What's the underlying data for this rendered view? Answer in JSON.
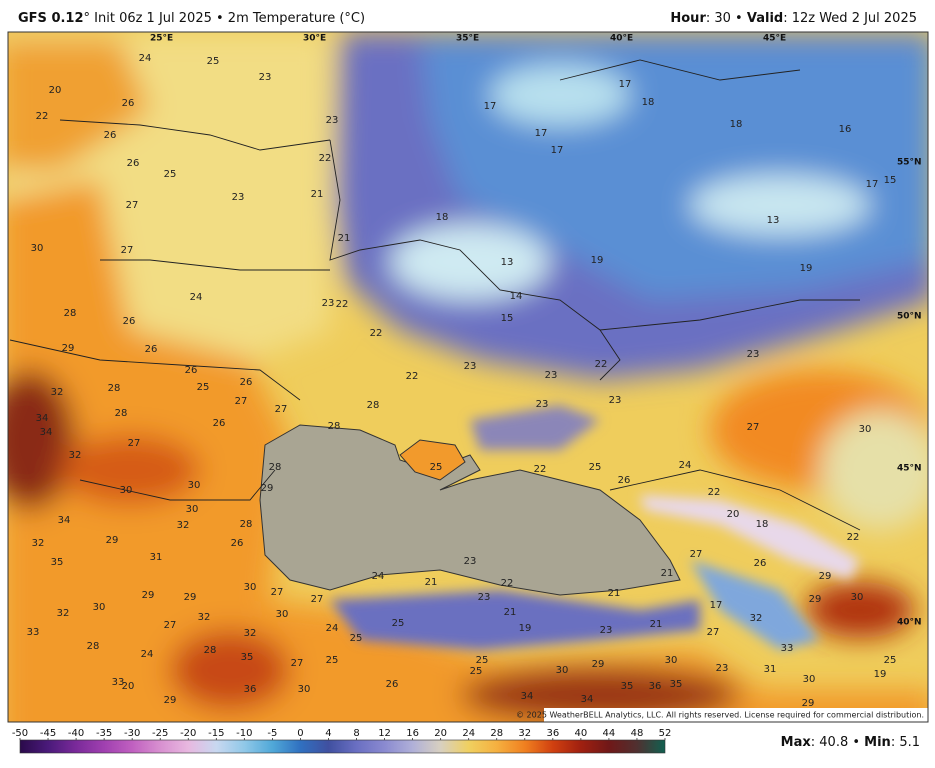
{
  "header": {
    "model": "GFS 0.12",
    "title": "° Init 06z 1 Jul 2025 • 2m Temperature (°C)",
    "hour_label": "Hour",
    "hour_rest": ": 30 • ",
    "valid_label": "Valid",
    "valid_rest": ": 12z Wed 2 Jul 2025"
  },
  "grid_labels": [
    "25°E",
    "30°E",
    "35°E",
    "40°E",
    "45°E",
    "55°N",
    "50°N",
    "45°N",
    "40°N"
  ],
  "labels": [
    "24",
    "25",
    "23",
    "20",
    "26",
    "22",
    "26",
    "23",
    "17",
    "18",
    "17",
    "17",
    "17",
    "18",
    "16",
    "26",
    "25",
    "22",
    "21",
    "23",
    "27",
    "17",
    "15",
    "18",
    "13",
    "21",
    "30",
    "27",
    "13",
    "19",
    "19",
    "24",
    "23",
    "22",
    "14",
    "28",
    "26",
    "15",
    "22",
    "29",
    "26",
    "23",
    "22",
    "23",
    "22",
    "23",
    "26",
    "25",
    "26",
    "28",
    "27",
    "28",
    "32",
    "23",
    "23",
    "28",
    "27",
    "34",
    "34",
    "26",
    "28",
    "27",
    "27",
    "30",
    "32",
    "25",
    "22",
    "25",
    "24",
    "28",
    "26",
    "30",
    "30",
    "29",
    "22",
    "30",
    "34",
    "32",
    "28",
    "20",
    "18",
    "29",
    "32",
    "26",
    "22",
    "31",
    "35",
    "23",
    "27",
    "21",
    "26",
    "24",
    "21",
    "22",
    "23",
    "29",
    "30",
    "27",
    "27",
    "29",
    "29",
    "21",
    "30",
    "30",
    "32",
    "21",
    "17",
    "29",
    "30",
    "27",
    "32",
    "19",
    "23",
    "21",
    "24",
    "25",
    "27",
    "32",
    "33",
    "32",
    "25",
    "28",
    "28",
    "24",
    "33",
    "25",
    "35",
    "25",
    "30",
    "29",
    "30",
    "27",
    "25",
    "25",
    "23",
    "31",
    "19",
    "33",
    "20",
    "30",
    "26",
    "36",
    "30",
    "35",
    "36",
    "35",
    "34",
    "34",
    "29",
    "29"
  ],
  "copyright": "© 2025 WeatherBELL Analytics, LLC. All rights reserved. License required for commercial distribution.",
  "colorbar": {
    "ticks": [
      -50,
      -45,
      -40,
      -35,
      -30,
      -25,
      -20,
      -15,
      -10,
      -5,
      0,
      4,
      8,
      12,
      16,
      20,
      24,
      28,
      32,
      36,
      40,
      44,
      48,
      52
    ]
  },
  "footer": {
    "max_label": "Max",
    "max_rest": ": 40.8 • ",
    "min_label": "Min",
    "min_rest": ": 5.1"
  }
}
